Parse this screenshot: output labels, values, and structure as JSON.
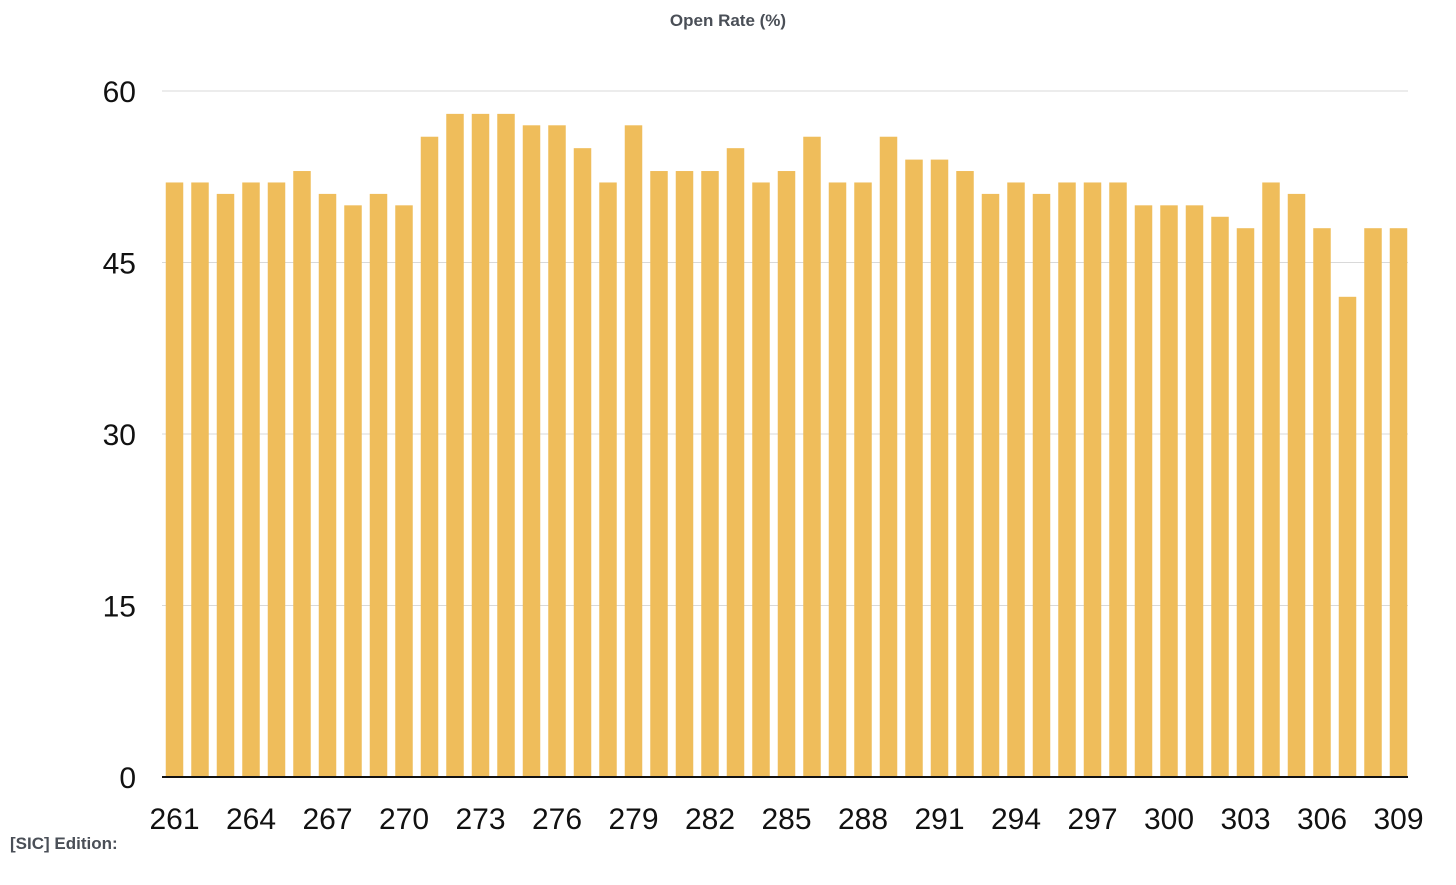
{
  "footer": {
    "label": "[SIC] Edition:"
  },
  "colors": {
    "bar": "#efbd5b",
    "grid": "#d9d9d9",
    "axis": "#111111",
    "title": "#4a4f57"
  },
  "chart_data": {
    "type": "bar",
    "title": "Open Rate (%)",
    "xlabel": "[SIC] Edition:",
    "ylabel": "",
    "ylim": [
      0,
      60
    ],
    "yticks": [
      0,
      15,
      30,
      45,
      60
    ],
    "grid": true,
    "legend": "none",
    "categories": [
      "261",
      "262",
      "263",
      "264",
      "265",
      "266",
      "267",
      "268",
      "269",
      "270",
      "271",
      "272",
      "273",
      "274",
      "275",
      "276",
      "277",
      "278",
      "279",
      "280",
      "281",
      "282",
      "283",
      "284",
      "285",
      "286",
      "287",
      "288",
      "289",
      "290",
      "291",
      "292",
      "293",
      "294",
      "295",
      "296",
      "297",
      "298",
      "299",
      "300",
      "301",
      "302",
      "303",
      "304",
      "305",
      "306",
      "307",
      "308",
      "309"
    ],
    "xtick_labels": [
      "261",
      "264",
      "267",
      "270",
      "273",
      "276",
      "279",
      "282",
      "285",
      "288",
      "291",
      "294",
      "297",
      "300",
      "303",
      "306",
      "309"
    ],
    "values": [
      52,
      52,
      51,
      52,
      52,
      53,
      51,
      50,
      51,
      50,
      56,
      58,
      58,
      58,
      57,
      57,
      55,
      52,
      57,
      53,
      53,
      53,
      55,
      52,
      53,
      56,
      52,
      52,
      56,
      54,
      54,
      53,
      51,
      52,
      51,
      52,
      52,
      52,
      50,
      50,
      50,
      49,
      48,
      52,
      51,
      48,
      42,
      48,
      48
    ]
  }
}
